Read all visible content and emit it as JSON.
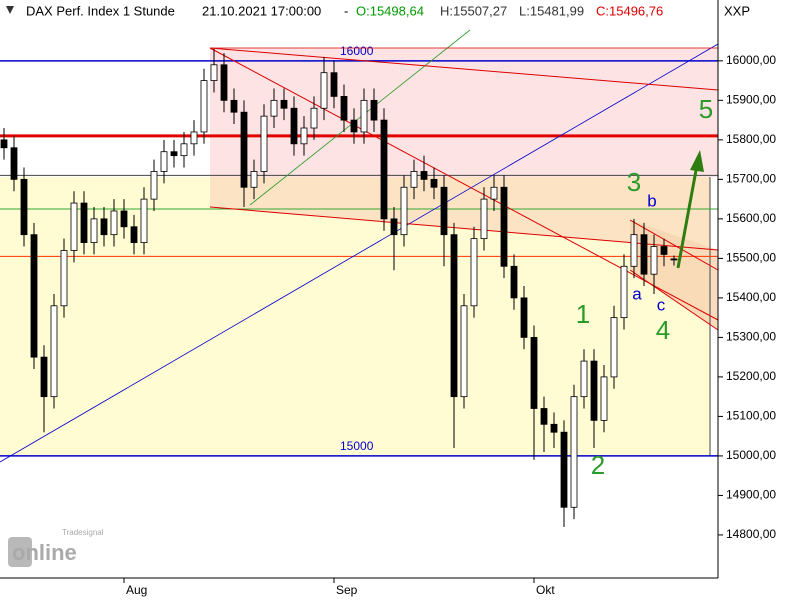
{
  "chart_data": {
    "type": "candlestick",
    "title": "DAX Perf. Index 1 Stunde",
    "timestamp": "21.10.2021 17:00:00",
    "separator": "-",
    "ohlc_labels": [
      "O:15498,64",
      "H:15507,27",
      "L:15481,99",
      "C:15496,76"
    ],
    "symbol_label": "XXP",
    "logo": {
      "small": "Tradesignal",
      "big": "online"
    },
    "categories": [
      null,
      null,
      null,
      null,
      null,
      null,
      null,
      null,
      null,
      null,
      null,
      null,
      "Aug",
      null,
      null,
      null,
      null,
      null,
      null,
      null,
      null,
      null,
      null,
      null,
      null,
      null,
      null,
      null,
      null,
      null,
      null,
      null,
      null,
      "Sep",
      null,
      null,
      null,
      null,
      null,
      null,
      null,
      null,
      null,
      null,
      null,
      null,
      null,
      null,
      null,
      null,
      null,
      null,
      null,
      "Okt",
      null,
      null,
      null,
      null,
      null,
      null,
      null,
      null,
      null,
      null,
      null,
      null,
      null,
      null
    ],
    "open": [
      15800,
      15780,
      15700,
      15560,
      15250,
      15150,
      15380,
      15520,
      15640,
      15540,
      15600,
      15560,
      15620,
      15580,
      15540,
      15650,
      15720,
      15770,
      15760,
      15790,
      15820,
      15950,
      15990,
      15900,
      15870,
      15680,
      15720,
      15860,
      15900,
      15880,
      15790,
      15830,
      15880,
      15970,
      15910,
      15850,
      15820,
      15900,
      15850,
      15600,
      15560,
      15680,
      15720,
      15700,
      15680,
      15560,
      15150,
      15380,
      15550,
      15650,
      15680,
      15480,
      15400,
      15300,
      15120,
      15080,
      15060,
      14870,
      15150,
      15240,
      15090,
      15200,
      15350,
      15480,
      15560,
      15460,
      15530,
      15498.64
    ],
    "high": [
      15830,
      15810,
      15730,
      15590,
      15280,
      15410,
      15550,
      15670,
      15670,
      15630,
      15630,
      15650,
      15650,
      15610,
      15680,
      15750,
      15800,
      15800,
      15820,
      15850,
      15980,
      16030,
      16020,
      15930,
      15900,
      15750,
      15890,
      15930,
      15930,
      15910,
      15860,
      15910,
      16010,
      16000,
      15940,
      15880,
      15930,
      15930,
      15880,
      15630,
      15710,
      15750,
      15760,
      15730,
      15710,
      15590,
      15410,
      15580,
      15680,
      15710,
      15710,
      15510,
      15430,
      15330,
      15150,
      15110,
      15090,
      15180,
      15270,
      15270,
      15230,
      15380,
      15510,
      15600,
      15590,
      15560,
      15550,
      15507.27
    ],
    "low": [
      15750,
      15670,
      15530,
      15220,
      15060,
      15120,
      15350,
      15490,
      15510,
      15510,
      15530,
      15530,
      15550,
      15510,
      15510,
      15620,
      15690,
      15730,
      15730,
      15760,
      15790,
      15920,
      15870,
      15840,
      15630,
      15650,
      15690,
      15830,
      15850,
      15760,
      15760,
      15800,
      15850,
      15880,
      15820,
      15790,
      15790,
      15820,
      15570,
      15470,
      15530,
      15650,
      15670,
      15650,
      15480,
      15020,
      15120,
      15350,
      15520,
      15620,
      15450,
      15370,
      15270,
      14990,
      15010,
      15020,
      14820,
      14840,
      15120,
      15020,
      15060,
      15170,
      15320,
      15450,
      15430,
      15410,
      15480,
      15481.99
    ],
    "close": [
      15780,
      15700,
      15560,
      15250,
      15150,
      15380,
      15520,
      15640,
      15540,
      15600,
      15560,
      15620,
      15580,
      15540,
      15650,
      15720,
      15770,
      15760,
      15790,
      15820,
      15950,
      15990,
      15900,
      15870,
      15680,
      15720,
      15860,
      15900,
      15880,
      15790,
      15830,
      15880,
      15970,
      15910,
      15850,
      15820,
      15900,
      15850,
      15600,
      15560,
      15680,
      15720,
      15700,
      15680,
      15560,
      15150,
      15380,
      15550,
      15650,
      15680,
      15480,
      15400,
      15300,
      15120,
      15080,
      15060,
      14870,
      15150,
      15240,
      15090,
      15200,
      15350,
      15480,
      15560,
      15460,
      15530,
      15510,
      15496.76
    ],
    "up_color": "#ffffff",
    "down_color": "#000000",
    "ylim": [
      14691,
      16154
    ],
    "yticks": [
      {
        "value": 14800,
        "label": "14800,00"
      },
      {
        "value": 14900,
        "label": "14900,00"
      },
      {
        "value": 15000,
        "label": "15000,00"
      },
      {
        "value": 15100,
        "label": "15100,00"
      },
      {
        "value": 15200,
        "label": "15200,00"
      },
      {
        "value": 15300,
        "label": "15300,00"
      },
      {
        "value": 15400,
        "label": "15400,00"
      },
      {
        "value": 15500,
        "label": "15500,00"
      },
      {
        "value": 15600,
        "label": "15600,00"
      },
      {
        "value": 15700,
        "label": "15700,00"
      },
      {
        "value": 15800,
        "label": "15800,00"
      },
      {
        "value": 15900,
        "label": "15900,00"
      },
      {
        "value": 16000,
        "label": "16000,00"
      }
    ],
    "levels": [
      {
        "value": 16000,
        "color": "#0000cc",
        "label": "16000"
      },
      {
        "value": 15000,
        "color": "#0000cc",
        "label": "15000"
      },
      {
        "value": 15810,
        "color": "#e00000"
      },
      {
        "value": 15505,
        "color": "#ff3300"
      },
      {
        "value": 15625,
        "color": "#33aa33"
      },
      {
        "value": 15710,
        "color": "#444444"
      }
    ],
    "annotations": [
      "1",
      "2",
      "3",
      "4",
      "5",
      "a",
      "b",
      "c"
    ]
  }
}
